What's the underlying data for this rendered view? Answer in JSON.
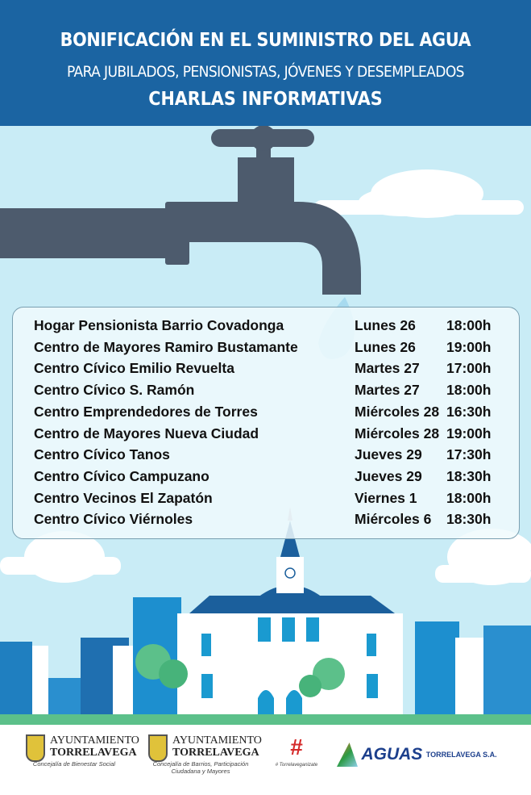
{
  "header": {
    "title": "BONIFICACIÓN EN EL SUMINISTRO DEL AGUA",
    "subtitle": "PARA JUBILADOS, PENSIONISTAS, JÓVENES Y DESEMPLEADOS",
    "heading": "CHARLAS INFORMATIVAS"
  },
  "schedule": [
    {
      "place": "Hogar Pensionista Barrio Covadonga",
      "day": "Lunes 26",
      "time": "18:00h"
    },
    {
      "place": "Centro de Mayores Ramiro Bustamante",
      "day": "Lunes 26",
      "time": "19:00h"
    },
    {
      "place": "Centro Cívico Emilio Revuelta",
      "day": "Martes 27",
      "time": "17:00h"
    },
    {
      "place": "Centro Cívico S. Ramón",
      "day": "Martes 27",
      "time": "18:00h"
    },
    {
      "place": "Centro Emprendedores de Torres",
      "day": "Miércoles 28",
      "time": "16:30h"
    },
    {
      "place": "Centro de Mayores Nueva Ciudad",
      "day": "Miércoles 28",
      "time": "19:00h"
    },
    {
      "place": "Centro Cívico Tanos",
      "day": "Jueves 29",
      "time": "17:30h"
    },
    {
      "place": "Centro Cívico Campuzano",
      "day": "Jueves 29",
      "time": "18:30h"
    },
    {
      "place": "Centro Vecinos El Zapatón",
      "day": "Viernes 1",
      "time": "18:00h"
    },
    {
      "place": "Centro Cívico Viérnoles",
      "day": "Miércoles 6",
      "time": "18:30h"
    }
  ],
  "footer": {
    "logo1": {
      "line1": "AYUNTAMIENTO",
      "line2": "TORRELAVEGA",
      "sub": "Concejalía de Bienestar Social"
    },
    "logo2": {
      "line1": "AYUNTAMIENTO",
      "line2": "TORRELAVEGA",
      "sub1": "Concejalía de Barrios, Participación",
      "sub2": "Ciudadana y Mayores"
    },
    "logo3": {
      "tag": "# Torrelaveganizate"
    },
    "logo4": {
      "brand": "AGUAS",
      "suffix": "TORRELAVEGA S.A."
    }
  },
  "colors": {
    "header": "#1b64a2",
    "sky": "#c9ecf6",
    "tap": "#4d5b6d",
    "building": "#1f6fb0",
    "grass": "#5cc08a"
  }
}
